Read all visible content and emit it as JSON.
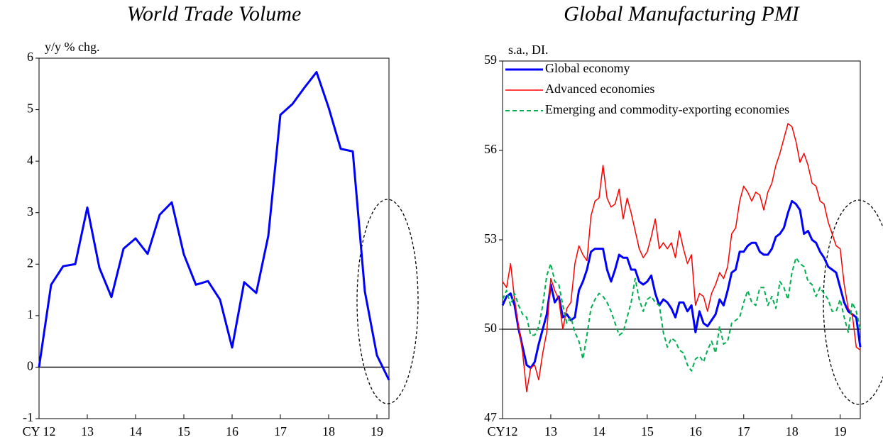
{
  "chart_data": [
    {
      "type": "line",
      "title": "World Trade Volume",
      "y_label": "y/y % chg.",
      "x": [
        2012,
        2012.25,
        2012.5,
        2012.75,
        2013,
        2013.25,
        2013.5,
        2013.75,
        2014,
        2014.25,
        2014.5,
        2014.75,
        2015,
        2015.25,
        2015.5,
        2015.75,
        2016,
        2016.25,
        2016.5,
        2016.75,
        2017,
        2017.25,
        2017.5,
        2017.75,
        2018,
        2018.25,
        2018.5,
        2018.75,
        2019,
        2019.25
      ],
      "xlim": [
        2012,
        2019.25
      ],
      "xticks": [
        {
          "value": 2012,
          "label": "CY 12"
        },
        {
          "value": 2013,
          "label": "13"
        },
        {
          "value": 2014,
          "label": "14"
        },
        {
          "value": 2015,
          "label": "15"
        },
        {
          "value": 2016,
          "label": "16"
        },
        {
          "value": 2017,
          "label": "17"
        },
        {
          "value": 2018,
          "label": "18"
        },
        {
          "value": 2019,
          "label": "19"
        }
      ],
      "ylim": [
        -1,
        6
      ],
      "yticks": [
        -1,
        0,
        1,
        2,
        3,
        4,
        5,
        6
      ],
      "reference_line": 0,
      "series": [
        {
          "color": "#0000ff",
          "width": 3,
          "style": "solid",
          "values": [
            0,
            1.6,
            1.96,
            2.0,
            3.1,
            1.93,
            1.36,
            2.3,
            2.5,
            2.2,
            2.96,
            3.2,
            2.19,
            1.6,
            1.67,
            1.31,
            0.38,
            1.65,
            1.44,
            2.55,
            4.9,
            5.11,
            5.43,
            5.73,
            5.04,
            4.24,
            4.19,
            1.47,
            0.23,
            -0.25
          ]
        }
      ]
    },
    {
      "type": "line",
      "title": "Global Manufacturing PMI",
      "y_label": "s.a., DI.",
      "x": [
        2012,
        2012.0833,
        2012.1667,
        2012.25,
        2012.3333,
        2012.4167,
        2012.5,
        2012.5833,
        2012.6667,
        2012.75,
        2012.8333,
        2012.9167,
        2013,
        2013.0833,
        2013.1667,
        2013.25,
        2013.3333,
        2013.4167,
        2013.5,
        2013.5833,
        2013.6667,
        2013.75,
        2013.8333,
        2013.9167,
        2014,
        2014.0833,
        2014.1667,
        2014.25,
        2014.3333,
        2014.4167,
        2014.5,
        2014.5833,
        2014.6667,
        2014.75,
        2014.8333,
        2014.9167,
        2015,
        2015.0833,
        2015.1667,
        2015.25,
        2015.3333,
        2015.4167,
        2015.5,
        2015.5833,
        2015.6667,
        2015.75,
        2015.8333,
        2015.9167,
        2016,
        2016.0833,
        2016.1667,
        2016.25,
        2016.3333,
        2016.4167,
        2016.5,
        2016.5833,
        2016.6667,
        2016.75,
        2016.8333,
        2016.9167,
        2017,
        2017.0833,
        2017.1667,
        2017.25,
        2017.3333,
        2017.4167,
        2017.5,
        2017.5833,
        2017.6667,
        2017.75,
        2017.8333,
        2017.9167,
        2018,
        2018.0833,
        2018.1667,
        2018.25,
        2018.3333,
        2018.4167,
        2018.5,
        2018.5833,
        2018.6667,
        2018.75,
        2018.8333,
        2018.9167,
        2019,
        2019.0833,
        2019.1667,
        2019.25,
        2019.3333,
        2019.4167
      ],
      "xlim": [
        2012,
        2019.4167
      ],
      "xticks": [
        {
          "value": 2012,
          "label": "CY12"
        },
        {
          "value": 2013,
          "label": "13"
        },
        {
          "value": 2014,
          "label": "14"
        },
        {
          "value": 2015,
          "label": "15"
        },
        {
          "value": 2016,
          "label": "16"
        },
        {
          "value": 2017,
          "label": "17"
        },
        {
          "value": 2018,
          "label": "18"
        },
        {
          "value": 2019,
          "label": "19"
        }
      ],
      "ylim": [
        47,
        59
      ],
      "yticks": [
        47,
        50,
        53,
        56,
        59
      ],
      "reference_line": 50,
      "legend": "upper left",
      "series": [
        {
          "name": "Global economy",
          "color": "#0000ff",
          "width": 3,
          "style": "solid",
          "values": [
            50.8,
            51.1,
            51.2,
            50.8,
            50.0,
            49.4,
            48.8,
            48.7,
            48.9,
            49.5,
            50.0,
            50.5,
            51.5,
            50.9,
            51.1,
            50.4,
            50.5,
            50.3,
            50.4,
            51.3,
            51.6,
            52.0,
            52.6,
            52.7,
            52.7,
            52.7,
            52.0,
            51.6,
            52.0,
            52.5,
            52.4,
            52.4,
            52.0,
            52.0,
            51.6,
            51.5,
            51.6,
            51.8,
            51.2,
            50.8,
            51.0,
            50.9,
            50.7,
            50.4,
            50.9,
            50.9,
            50.6,
            50.8,
            49.9,
            50.6,
            50.2,
            50.1,
            50.3,
            50.5,
            51.0,
            50.8,
            51.3,
            51.9,
            52.0,
            52.6,
            52.6,
            52.8,
            52.9,
            52.9,
            52.6,
            52.5,
            52.5,
            52.7,
            53.1,
            53.2,
            53.4,
            53.9,
            54.3,
            54.2,
            54.0,
            53.2,
            53.3,
            53.0,
            52.9,
            52.6,
            52.4,
            52.1,
            52.0,
            51.9,
            51.4,
            50.9,
            50.6,
            50.5,
            50.4,
            49.4
          ]
        },
        {
          "name": "Advanced economies",
          "color": "#ff0000",
          "width": 1.5,
          "style": "solid",
          "values": [
            51.6,
            51.4,
            52.2,
            51.0,
            50.1,
            49.2,
            47.9,
            48.7,
            48.8,
            48.3,
            49.2,
            49.9,
            51.7,
            51.3,
            51.0,
            50.0,
            50.7,
            50.9,
            52.2,
            52.8,
            52.5,
            52.3,
            53.8,
            54.3,
            54.4,
            55.5,
            54.4,
            54.1,
            54.2,
            54.7,
            53.7,
            54.4,
            53.9,
            53.3,
            52.7,
            52.4,
            52.6,
            53.1,
            53.7,
            52.7,
            52.9,
            52.7,
            52.9,
            52.4,
            53.3,
            52.7,
            52.2,
            52.5,
            50.8,
            51.2,
            51.1,
            50.6,
            51.2,
            51.5,
            51.9,
            51.7,
            52.1,
            53.2,
            53.4,
            54.3,
            54.8,
            54.6,
            54.3,
            54.6,
            54.5,
            54.0,
            54.6,
            54.9,
            55.5,
            55.9,
            56.4,
            56.9,
            56.8,
            56.3,
            55.6,
            55.9,
            55.5,
            54.9,
            54.8,
            54.3,
            54.2,
            53.6,
            53.2,
            52.8,
            52.7,
            51.5,
            50.7,
            50.5,
            49.4,
            49.3
          ]
        },
        {
          "name": "Emerging and commodity-exporting economies",
          "color": "#00b050",
          "width": 2,
          "style": "dashed",
          "values": [
            51.0,
            51.3,
            50.8,
            51.2,
            50.8,
            50.5,
            50.4,
            49.8,
            49.8,
            50.1,
            50.8,
            51.8,
            52.2,
            51.6,
            51.5,
            50.8,
            50.2,
            50.4,
            49.9,
            49.6,
            49.0,
            49.8,
            50.7,
            51.0,
            51.2,
            51.1,
            50.9,
            50.6,
            50.2,
            49.8,
            49.9,
            50.4,
            50.9,
            51.7,
            51.0,
            50.6,
            51.0,
            51.1,
            50.9,
            50.8,
            49.9,
            49.4,
            49.7,
            49.6,
            49.3,
            49.2,
            48.8,
            48.6,
            49.0,
            49.1,
            48.9,
            49.3,
            49.6,
            49.2,
            50.1,
            49.5,
            49.6,
            50.2,
            50.3,
            50.4,
            50.9,
            51.3,
            50.9,
            50.8,
            51.4,
            51.4,
            50.8,
            51.1,
            50.7,
            51.6,
            51.4,
            51.0,
            51.9,
            52.4,
            52.2,
            52.1,
            51.6,
            51.5,
            51.1,
            51.4,
            51.2,
            51.0,
            50.6,
            50.6,
            51.0,
            50.4,
            49.9,
            50.9,
            50.6,
            50.0
          ]
        }
      ]
    }
  ]
}
